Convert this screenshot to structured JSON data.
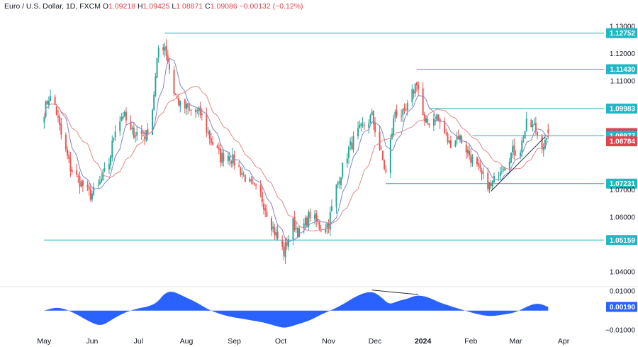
{
  "header": {
    "symbol": "Euro / U.S. Dollar, 1D, FXCM",
    "o_label": "O",
    "o": "1.09218",
    "h_label": "H",
    "h": "1.09425",
    "l_label": "L",
    "l": "1.08871",
    "c_label": "C",
    "c": "1.09086",
    "change": "−0.00132 (−0.12%)"
  },
  "colors": {
    "up": "#26a69a",
    "down": "#ef5350",
    "level": "#22aab5",
    "ma_fast": "#7e87c7",
    "ma_slow": "#e08a8a",
    "osc": "#2962ff",
    "price_tag": "#e0424e",
    "ma_fast_tag": "#2962ff",
    "level_tag": "#22b7c4"
  },
  "chart_data": [
    {
      "type": "candlestick",
      "title": "Euro / U.S. Dollar, 1D, FXCM",
      "ylim": [
        1.035,
        1.135
      ],
      "y_ticks": [
        "1.13000",
        "1.12000",
        "1.11000",
        "1.10000",
        "1.09000",
        "1.08000",
        "1.07000",
        "1.06000",
        "1.05000",
        "1.04000"
      ],
      "x_ticks": [
        "May",
        "Jun",
        "Jul",
        "Aug",
        "Sep",
        "Oct",
        "Nov",
        "Dec",
        "2024",
        "Feb",
        "Mar",
        "Apr"
      ],
      "price_path": [
        [
          "2023-05-01",
          1.099
        ],
        [
          "2023-05-04",
          1.104
        ],
        [
          "2023-05-08",
          1.101
        ],
        [
          "2023-05-12",
          1.09
        ],
        [
          "2023-05-18",
          1.078
        ],
        [
          "2023-05-24",
          1.073
        ],
        [
          "2023-05-31",
          1.068
        ],
        [
          "2023-06-05",
          1.071
        ],
        [
          "2023-06-12",
          1.08
        ],
        [
          "2023-06-16",
          1.093
        ],
        [
          "2023-06-21",
          1.098
        ],
        [
          "2023-06-26",
          1.091
        ],
        [
          "2023-06-30",
          1.091
        ],
        [
          "2023-07-06",
          1.09
        ],
        [
          "2023-07-10",
          1.1
        ],
        [
          "2023-07-14",
          1.122
        ],
        [
          "2023-07-18",
          1.123
        ],
        [
          "2023-07-24",
          1.106
        ],
        [
          "2023-07-28",
          1.101
        ],
        [
          "2023-08-04",
          1.099
        ],
        [
          "2023-08-10",
          1.098
        ],
        [
          "2023-08-17",
          1.088
        ],
        [
          "2023-08-23",
          1.082
        ],
        [
          "2023-08-28",
          1.083
        ],
        [
          "2023-09-04",
          1.078
        ],
        [
          "2023-09-11",
          1.072
        ],
        [
          "2023-09-18",
          1.068
        ],
        [
          "2023-09-26",
          1.056
        ],
        [
          "2023-10-03",
          1.047
        ],
        [
          "2023-10-09",
          1.058
        ],
        [
          "2023-10-13",
          1.054
        ],
        [
          "2023-10-20",
          1.061
        ],
        [
          "2023-10-27",
          1.056
        ],
        [
          "2023-11-01",
          1.058
        ],
        [
          "2023-11-06",
          1.071
        ],
        [
          "2023-11-14",
          1.085
        ],
        [
          "2023-11-20",
          1.091
        ],
        [
          "2023-11-29",
          1.097
        ],
        [
          "2023-12-05",
          1.083
        ],
        [
          "2023-12-08",
          1.076
        ],
        [
          "2023-12-14",
          1.099
        ],
        [
          "2023-12-20",
          1.097
        ],
        [
          "2023-12-28",
          1.11
        ],
        [
          "2024-01-02",
          1.094
        ],
        [
          "2024-01-10",
          1.097
        ],
        [
          "2024-01-18",
          1.087
        ],
        [
          "2024-01-24",
          1.09
        ],
        [
          "2024-02-01",
          1.082
        ],
        [
          "2024-02-08",
          1.075
        ],
        [
          "2024-02-14",
          1.071
        ],
        [
          "2024-02-20",
          1.078
        ],
        [
          "2024-02-28",
          1.084
        ],
        [
          "2024-03-04",
          1.085
        ],
        [
          "2024-03-08",
          1.094
        ],
        [
          "2024-03-13",
          1.093
        ],
        [
          "2024-03-18",
          1.087
        ],
        [
          "2024-03-21",
          1.087
        ],
        [
          "2024-03-22",
          1.091
        ]
      ],
      "series": [
        {
          "name": "",
          "kind": "ma_fast"
        },
        {
          "name": "",
          "kind": "ma_slow"
        }
      ],
      "horizontal_levels": [
        {
          "value": 1.12752,
          "from": "2023-07-18"
        },
        {
          "value": 1.1143,
          "from": "2023-12-28"
        },
        {
          "value": 1.09983,
          "from": "2024-01-05"
        },
        {
          "value": 1.08987,
          "from": "2024-02-02"
        },
        {
          "value": 1.07231,
          "from": "2023-12-08"
        },
        {
          "value": 1.05159,
          "from": "2023-05-01"
        }
      ],
      "trendline": {
        "from": [
          "2024-02-14",
          1.0695
        ],
        "to": [
          "2024-03-20",
          1.0895
        ]
      },
      "price_labels": [
        {
          "text": "1.13000",
          "value": 1.13,
          "kind": "tick"
        },
        {
          "text": "1.12752",
          "value": 1.12752,
          "kind": "level"
        },
        {
          "text": "1.12000",
          "value": 1.12,
          "kind": "tick"
        },
        {
          "text": "1.11430",
          "value": 1.1143,
          "kind": "level"
        },
        {
          "text": "1.11000",
          "value": 1.11,
          "kind": "tick"
        },
        {
          "text": "1.09983",
          "value": 1.09983,
          "kind": "level"
        },
        {
          "text": "1.09086",
          "value": 1.09086,
          "kind": "price"
        },
        {
          "text": "1.08987",
          "value": 1.08987,
          "kind": "ma_fast"
        },
        {
          "text": "1.08977",
          "value": 1.08977,
          "kind": "level_plain"
        },
        {
          "text": "1.08784",
          "value": 1.08784,
          "kind": "ma_slow"
        },
        {
          "text": "1.07231",
          "value": 1.07231,
          "kind": "level"
        },
        {
          "text": "1.07000",
          "value": 1.07,
          "kind": "tick"
        },
        {
          "text": "1.06000",
          "value": 1.06,
          "kind": "tick"
        },
        {
          "text": "1.05159",
          "value": 1.05159,
          "kind": "level"
        },
        {
          "text": "1.04000",
          "value": 1.04,
          "kind": "tick"
        }
      ]
    },
    {
      "type": "area",
      "ylim": [
        -0.011,
        0.0115
      ],
      "y_ticks": [
        "0.01000",
        "0.00190",
        "−0.01000"
      ],
      "last_value": 0.0019,
      "values": [
        [
          "2023-05-01",
          0.0
        ],
        [
          "2023-05-10",
          0.002
        ],
        [
          "2023-05-20",
          -0.001
        ],
        [
          "2023-05-31",
          -0.006
        ],
        [
          "2023-06-07",
          -0.008
        ],
        [
          "2023-06-15",
          -0.004
        ],
        [
          "2023-06-22",
          -0.001
        ],
        [
          "2023-06-30",
          0.001
        ],
        [
          "2023-07-07",
          0.002
        ],
        [
          "2023-07-13",
          0.004
        ],
        [
          "2023-07-18",
          0.009
        ],
        [
          "2023-07-23",
          0.01
        ],
        [
          "2023-07-31",
          0.007
        ],
        [
          "2023-08-08",
          0.004
        ],
        [
          "2023-08-14",
          0.001
        ],
        [
          "2023-08-20",
          -0.001
        ],
        [
          "2023-08-28",
          -0.003
        ],
        [
          "2023-09-05",
          -0.004
        ],
        [
          "2023-09-12",
          -0.005
        ],
        [
          "2023-09-20",
          -0.006
        ],
        [
          "2023-09-28",
          -0.008
        ],
        [
          "2023-10-04",
          -0.009
        ],
        [
          "2023-10-12",
          -0.007
        ],
        [
          "2023-10-20",
          -0.005
        ],
        [
          "2023-10-27",
          -0.002
        ],
        [
          "2023-11-05",
          0.001
        ],
        [
          "2023-11-12",
          0.004
        ],
        [
          "2023-11-20",
          0.008
        ],
        [
          "2023-11-29",
          0.01
        ],
        [
          "2023-12-05",
          0.007
        ],
        [
          "2023-12-10",
          0.003
        ],
        [
          "2023-12-16",
          0.005
        ],
        [
          "2023-12-22",
          0.006
        ],
        [
          "2023-12-28",
          0.008
        ],
        [
          "2024-01-04",
          0.007
        ],
        [
          "2024-01-12",
          0.004
        ],
        [
          "2024-01-20",
          0.002
        ],
        [
          "2024-01-28",
          0.0
        ],
        [
          "2024-02-06",
          -0.002
        ],
        [
          "2024-02-14",
          -0.003
        ],
        [
          "2024-02-22",
          -0.002
        ],
        [
          "2024-03-01",
          -0.001
        ],
        [
          "2024-03-08",
          0.002
        ],
        [
          "2024-03-15",
          0.004
        ],
        [
          "2024-03-22",
          0.0019
        ]
      ],
      "divergence_line": {
        "from": [
          "2023-11-29",
          0.0105
        ],
        "to": [
          "2023-12-29",
          0.0082
        ]
      }
    }
  ]
}
